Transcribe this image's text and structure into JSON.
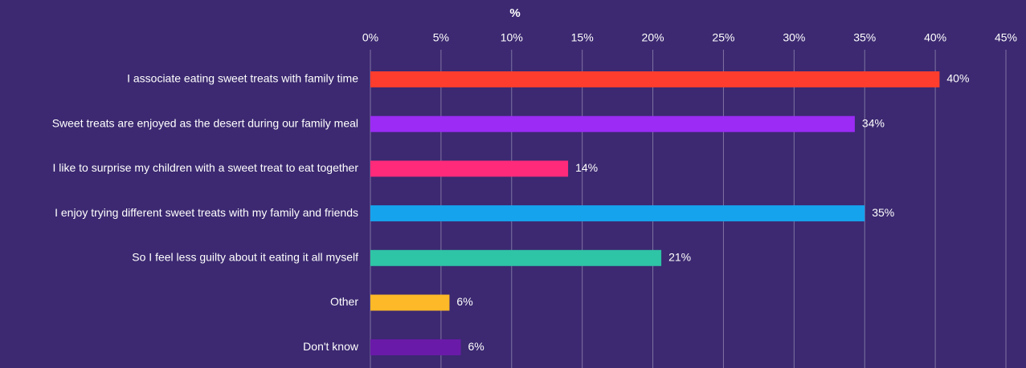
{
  "chart_data": {
    "type": "bar",
    "orientation": "horizontal",
    "xlabel": "%",
    "categories": [
      "I associate eating sweet treats with family time",
      "Sweet treats are enjoyed as the desert during our family meal",
      "I like to surprise my children with a sweet treat to eat together",
      "I enjoy trying different sweet treats with my family and friends",
      "So I feel less guilty about it eating it all myself",
      "Other",
      "Don't know"
    ],
    "values": [
      40.3,
      34.3,
      14,
      35,
      20.6,
      5.6,
      6.4
    ],
    "value_labels": [
      "40%",
      "34%",
      "14%",
      "35%",
      "21%",
      "6%",
      "6%"
    ],
    "colors": [
      "#ff3d2e",
      "#9b2bf5",
      "#ff2a7a",
      "#16a3ee",
      "#2ec4a6",
      "#fdb927",
      "#6a1aa8"
    ],
    "xlim": [
      0,
      45
    ],
    "xticks": [
      {
        "value": 0,
        "label": "0%"
      },
      {
        "value": 5,
        "label": "5%"
      },
      {
        "value": 10,
        "label": "10%"
      },
      {
        "value": 15,
        "label": "15%"
      },
      {
        "value": 20,
        "label": "20%"
      },
      {
        "value": 25,
        "label": "25%"
      },
      {
        "value": 30,
        "label": "30%"
      },
      {
        "value": 35,
        "label": "35%"
      },
      {
        "value": 40,
        "label": "40%"
      },
      {
        "value": 45,
        "label": "45%"
      }
    ],
    "grid": true
  }
}
